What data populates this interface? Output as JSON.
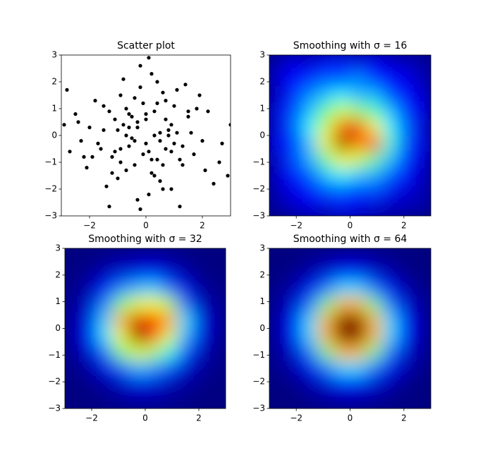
{
  "chart_data": [
    {
      "type": "scatter",
      "title": "Scatter plot",
      "color": "#000000",
      "x": [
        -2.9,
        3.0,
        -2.8,
        0.1,
        -0.2,
        -1.3,
        1.2,
        2.9,
        -2.7,
        -2.5,
        2.6,
        -1.8,
        1.9,
        0.5,
        -0.6,
        0.3,
        -0.9,
        1.1,
        -0.4,
        0.7,
        0.0,
        -1.2,
        1.5,
        -0.1,
        0.9,
        -0.7,
        0.2,
        -1.5,
        1.3,
        -0.3,
        0.6,
        -1.0,
        0.4,
        -0.5,
        1.7,
        -1.7,
        0.8,
        -0.8,
        2.2,
        -2.1,
        0.1,
        -0.2,
        1.0,
        -1.1,
        0.5,
        -0.6,
        0.3,
        -0.4,
        1.4,
        -1.4,
        0.0,
        2.0,
        -2.0,
        0.6,
        -0.9,
        0.2,
        -0.3,
        1.2,
        -1.3,
        0.9,
        -0.1,
        0.7,
        -0.7,
        1.6,
        -1.6,
        0.4,
        -0.5,
        2.4,
        -2.3,
        0.1,
        1.8,
        -1.9,
        0.3,
        -0.8,
        1.1,
        -1.0,
        0.6,
        -0.2,
        0.8,
        -1.2,
        2.7,
        -2.4,
        0.0,
        0.5,
        -0.4,
        1.3,
        -0.6,
        0.2,
        -1.5,
        1.0,
        -0.3,
        0.7,
        -0.9,
        1.5,
        -1.1,
        0.4,
        -0.7,
        2.1,
        -2.2,
        0.9
      ],
      "y": [
        0.4,
        0.4,
        1.7,
        2.9,
        -2.75,
        -2.65,
        -2.65,
        -1.5,
        -0.6,
        0.8,
        -1.0,
        1.3,
        1.5,
        -0.2,
        0.3,
        0.9,
        -0.5,
        0.1,
        -1.1,
        0.6,
        -0.3,
        -0.8,
        0.7,
        1.2,
        -0.6,
        1.0,
        -1.4,
        0.2,
        -0.4,
        0.5,
        1.6,
        -1.6,
        -0.9,
        -0.1,
        -0.7,
        -0.3,
        0.2,
        2.1,
        0.9,
        -1.2,
        -2.2,
        1.8,
        1.1,
        0.6,
        -1.7,
        -0.4,
        0.0,
        1.4,
        1.9,
        -1.9,
        0.8,
        -0.2,
        0.3,
        -1.1,
        1.5,
        2.3,
        -2.4,
        -0.9,
        0.9,
        0.4,
        -0.7,
        -0.5,
        -1.3,
        0.1,
        -0.5,
        1.2,
        0.7,
        -1.8,
        -0.2,
        -0.6,
        1.0,
        -0.8,
        -1.5,
        0.4,
        1.7,
        0.2,
        -2.0,
        2.6,
        0.0,
        -1.4,
        -0.3,
        0.5,
        0.6,
        0.1,
        -0.2,
        -1.1,
        0.8,
        -0.9,
        1.1,
        -0.3,
        0.3,
        1.3,
        -1.0,
        0.9,
        -0.6,
        2.0,
        0.0,
        -1.3,
        -0.8,
        -2.0
      ],
      "xlim": [
        -3,
        3
      ],
      "ylim": [
        -3,
        3
      ],
      "xticks": [
        {
          "value": -2,
          "label": "−2"
        },
        0,
        2
      ],
      "yticks": [
        {
          "value": -3,
          "label": "−3"
        },
        {
          "value": -2,
          "label": "−2"
        },
        {
          "value": -1,
          "label": "−1"
        },
        0,
        1,
        2,
        3
      ]
    },
    {
      "type": "heatmap",
      "title": "Smoothing with  σ = 16",
      "colormap": "jet",
      "values": [
        [
          0.05,
          0.1,
          0.08,
          0.12,
          0.15,
          0.1,
          0.12,
          0.08,
          0.06,
          0.04
        ],
        [
          0.08,
          0.12,
          0.15,
          0.2,
          0.18,
          0.25,
          0.15,
          0.12,
          0.1,
          0.05
        ],
        [
          0.06,
          0.15,
          0.25,
          0.3,
          0.35,
          0.28,
          0.3,
          0.18,
          0.12,
          0.08
        ],
        [
          0.1,
          0.18,
          0.3,
          0.45,
          0.55,
          0.5,
          0.42,
          0.3,
          0.15,
          0.1
        ],
        [
          0.08,
          0.2,
          0.35,
          0.55,
          0.75,
          0.85,
          0.6,
          0.35,
          0.2,
          0.08
        ],
        [
          0.12,
          0.15,
          0.3,
          0.6,
          0.95,
          0.7,
          0.8,
          0.4,
          0.18,
          0.1
        ],
        [
          0.06,
          0.18,
          0.28,
          0.45,
          0.6,
          0.55,
          0.45,
          0.3,
          0.15,
          0.08
        ],
        [
          0.08,
          0.12,
          0.2,
          0.3,
          0.35,
          0.3,
          0.28,
          0.2,
          0.12,
          0.06
        ],
        [
          0.05,
          0.1,
          0.12,
          0.18,
          0.2,
          0.15,
          0.18,
          0.1,
          0.08,
          0.05
        ],
        [
          0.04,
          0.06,
          0.1,
          0.08,
          0.12,
          0.1,
          0.08,
          0.06,
          0.05,
          0.04
        ]
      ],
      "xlim": [
        -3,
        3
      ],
      "ylim": [
        -3,
        3
      ],
      "xticks": [
        {
          "value": -2,
          "label": "−2"
        },
        0,
        2
      ],
      "yticks": [
        {
          "value": -3,
          "label": "−3"
        },
        {
          "value": -2,
          "label": "−2"
        },
        {
          "value": -1,
          "label": "−1"
        },
        0,
        1,
        2,
        3
      ]
    },
    {
      "type": "heatmap",
      "title": "Smoothing with  σ = 32",
      "colormap": "jet",
      "values": [
        [
          0,
          0,
          0.01,
          0.02,
          0.03,
          0.03,
          0.02,
          0.01,
          0,
          0
        ],
        [
          0,
          0.02,
          0.05,
          0.08,
          0.1,
          0.12,
          0.08,
          0.04,
          0.01,
          0
        ],
        [
          0.01,
          0.04,
          0.12,
          0.25,
          0.3,
          0.33,
          0.22,
          0.1,
          0.03,
          0.01
        ],
        [
          0.02,
          0.07,
          0.25,
          0.5,
          0.6,
          0.62,
          0.55,
          0.22,
          0.06,
          0.02
        ],
        [
          0.03,
          0.1,
          0.33,
          0.7,
          0.92,
          0.85,
          0.72,
          0.35,
          0.1,
          0.03
        ],
        [
          0.03,
          0.12,
          0.35,
          0.62,
          1.0,
          0.8,
          0.6,
          0.3,
          0.1,
          0.02
        ],
        [
          0.02,
          0.08,
          0.22,
          0.5,
          0.6,
          0.55,
          0.4,
          0.2,
          0.06,
          0.01
        ],
        [
          0.01,
          0.03,
          0.1,
          0.2,
          0.3,
          0.27,
          0.2,
          0.08,
          0.03,
          0.01
        ],
        [
          0,
          0.01,
          0.03,
          0.06,
          0.1,
          0.09,
          0.05,
          0.03,
          0.01,
          0
        ],
        [
          0,
          0,
          0.01,
          0.02,
          0.03,
          0.03,
          0.02,
          0.01,
          0,
          0
        ]
      ],
      "xlim": [
        -3,
        3
      ],
      "ylim": [
        -3,
        3
      ],
      "xticks": [
        {
          "value": -2,
          "label": "−2"
        },
        0,
        2
      ],
      "yticks": [
        {
          "value": -3,
          "label": "−3"
        },
        {
          "value": -2,
          "label": "−2"
        },
        {
          "value": -1,
          "label": "−1"
        },
        0,
        1,
        2,
        3
      ]
    },
    {
      "type": "heatmap",
      "title": "Smoothing with  σ = 64",
      "colormap": "jet",
      "values": [
        [
          0,
          0,
          0.01,
          0.02,
          0.03,
          0.03,
          0.02,
          0.01,
          0,
          0
        ],
        [
          0,
          0.01,
          0.04,
          0.07,
          0.11,
          0.11,
          0.07,
          0.04,
          0.01,
          0
        ],
        [
          0.01,
          0.04,
          0.1,
          0.21,
          0.31,
          0.31,
          0.21,
          0.1,
          0.04,
          0.01
        ],
        [
          0.02,
          0.07,
          0.21,
          0.45,
          0.64,
          0.64,
          0.45,
          0.21,
          0.07,
          0.02
        ],
        [
          0.03,
          0.11,
          0.31,
          0.64,
          0.92,
          0.92,
          0.64,
          0.31,
          0.11,
          0.03
        ],
        [
          0.03,
          0.11,
          0.31,
          0.64,
          0.92,
          0.92,
          0.64,
          0.31,
          0.11,
          0.03
        ],
        [
          0.02,
          0.07,
          0.21,
          0.45,
          0.64,
          0.64,
          0.45,
          0.21,
          0.07,
          0.02
        ],
        [
          0.01,
          0.04,
          0.1,
          0.21,
          0.31,
          0.31,
          0.21,
          0.1,
          0.04,
          0.01
        ],
        [
          0,
          0.01,
          0.04,
          0.07,
          0.11,
          0.11,
          0.07,
          0.04,
          0.01,
          0
        ],
        [
          0,
          0,
          0.01,
          0.02,
          0.03,
          0.03,
          0.02,
          0.01,
          0,
          0
        ]
      ],
      "xlim": [
        -3,
        3
      ],
      "ylim": [
        -3,
        3
      ],
      "xticks": [
        {
          "value": -2,
          "label": "−2"
        },
        0,
        2
      ],
      "yticks": [
        {
          "value": -3,
          "label": "−3"
        },
        {
          "value": -2,
          "label": "−2"
        },
        {
          "value": -1,
          "label": "−1"
        },
        0,
        1,
        2,
        3
      ]
    }
  ]
}
